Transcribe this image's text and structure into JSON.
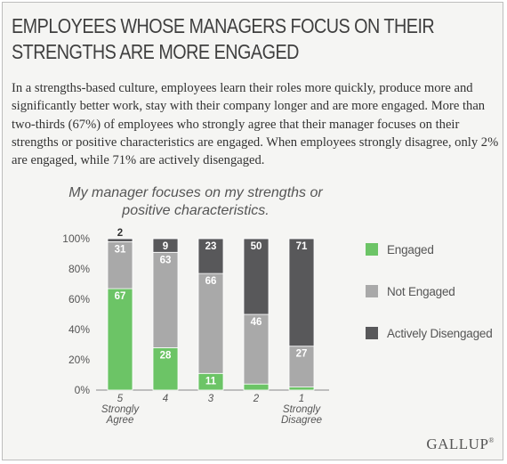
{
  "headline": "EMPLOYEES WHOSE MANAGERS FOCUS ON THEIR STRENGTHS ARE MORE ENGAGED",
  "body": "In a strengths-based culture, employees learn their roles more quickly, produce more and significantly better work, stay with their company longer and are more engaged. More than two-thirds (67%) of employees who strongly agree that their manager focuses on their strengths or positive characteristics are engaged. When employees strongly disagree, only 2% are engaged, while 71% are actively disengaged.",
  "logo": "GALLUP",
  "logo_mark": "®",
  "colors": {
    "engaged": "#6cc466",
    "not_engaged": "#a9a9a9",
    "actively_disengaged": "#58585a"
  },
  "chart_data": {
    "type": "bar",
    "stacked": true,
    "title": "My manager focuses on my strengths or positive characteristics.",
    "categories": [
      [
        "5",
        "Strongly",
        "Agree"
      ],
      [
        "4"
      ],
      [
        "3"
      ],
      [
        "2"
      ],
      [
        "1",
        "Strongly",
        "Disagree"
      ]
    ],
    "series": [
      {
        "name": "Engaged",
        "values": [
          67,
          28,
          11,
          4,
          2
        ],
        "labels": [
          "67",
          "28",
          "11",
          "",
          ""
        ]
      },
      {
        "name": "Not Engaged",
        "values": [
          31,
          63,
          66,
          46,
          27
        ],
        "labels": [
          "31",
          "63",
          "66",
          "46",
          "27"
        ]
      },
      {
        "name": "Actively Disengaged",
        "values": [
          2,
          9,
          23,
          50,
          71
        ],
        "labels": [
          "2",
          "9",
          "23",
          "50",
          "71"
        ]
      }
    ],
    "yticks": [
      "0%",
      "20%",
      "40%",
      "60%",
      "80%",
      "100%"
    ],
    "ylim": [
      0,
      100
    ],
    "legend": "right"
  }
}
